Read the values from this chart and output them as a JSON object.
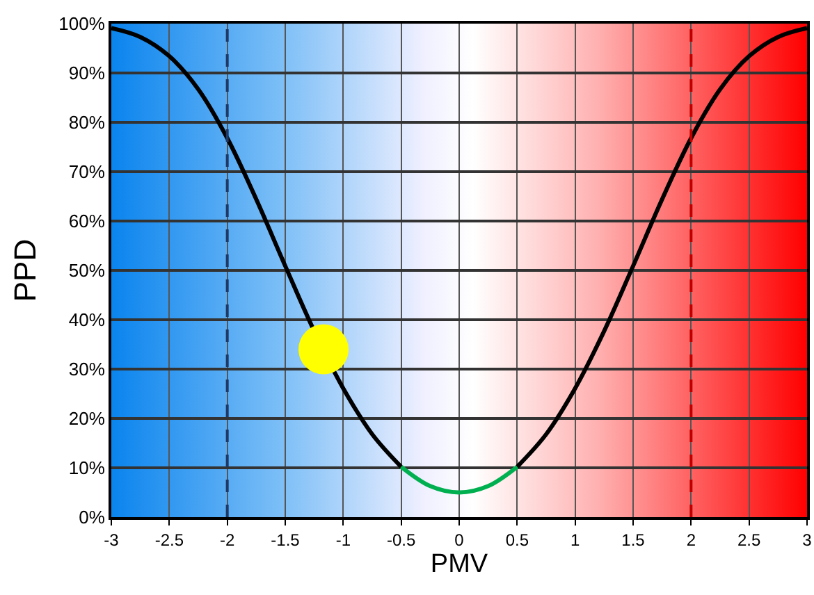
{
  "chart_data": {
    "type": "line",
    "xlabel": "PMV",
    "ylabel": "PPD",
    "xlim": [
      -3,
      3
    ],
    "xticks": [
      -3,
      -2.5,
      -2,
      -1.5,
      -1,
      -0.5,
      0,
      0.5,
      1,
      1.5,
      2,
      2.5,
      3
    ],
    "ylim": [
      0,
      100
    ],
    "yticks": [
      {
        "value": 0,
        "label": "0%"
      },
      {
        "value": 10,
        "label": "10%"
      },
      {
        "value": 20,
        "label": "20%"
      },
      {
        "value": 30,
        "label": "30%"
      },
      {
        "value": 40,
        "label": "40%"
      },
      {
        "value": 50,
        "label": "50%"
      },
      {
        "value": 60,
        "label": "60%"
      },
      {
        "value": 70,
        "label": "70%"
      },
      {
        "value": 80,
        "label": "80%"
      },
      {
        "value": 90,
        "label": "90%"
      },
      {
        "value": 100,
        "label": "100%"
      }
    ],
    "grid": true,
    "legend": false,
    "marker": "none",
    "line_style": "solid",
    "series": [
      {
        "color": "#000000",
        "x": [
          -3,
          -2.75,
          -2.5,
          -2.25,
          -2,
          -1.75,
          -1.5,
          -1.25,
          -1,
          -0.75,
          -0.5,
          0,
          0.5,
          0.75,
          1,
          1.25,
          1.5,
          1.75,
          2,
          2.25,
          2.5,
          2.75,
          3
        ],
        "values": [
          99.1,
          97.3,
          93.4,
          86.7,
          76.8,
          64.4,
          50.9,
          37.7,
          26.1,
          16.8,
          10.2,
          null,
          10.2,
          16.8,
          26.1,
          37.7,
          50.9,
          64.4,
          76.8,
          86.7,
          93.4,
          97.3,
          99.1
        ]
      },
      {
        "color": "#00b050",
        "x": [
          -0.5,
          -0.25,
          0,
          0.25,
          0.5
        ],
        "values": [
          10.2,
          6.3,
          5,
          6.3,
          10.2
        ]
      },
      {
        "type": "scatter",
        "color": "#ffff00",
        "marker": "circle",
        "x": [
          -1.17
        ],
        "values": [
          34
        ]
      }
    ],
    "ref_lines": [
      {
        "axis": "x",
        "value": -2,
        "color": "#1f3864",
        "line_style": "dashed"
      },
      {
        "axis": "x",
        "value": 2,
        "color": "#c00000",
        "line_style": "dashed"
      }
    ]
  }
}
